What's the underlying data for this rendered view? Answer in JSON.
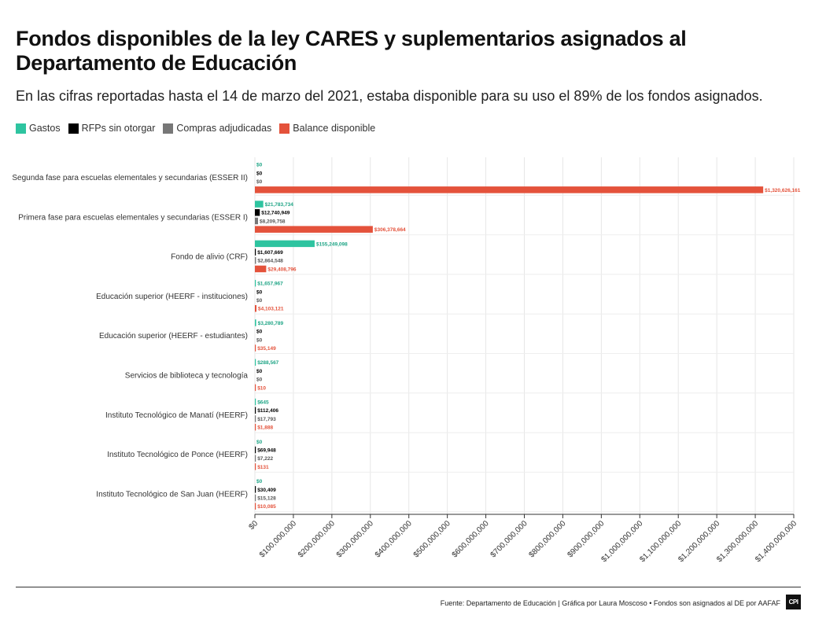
{
  "title": "Fondos disponibles de la ley CARES y suplementarios asignados al Departamento de Educación",
  "subtitle": "En las cifras reportadas hasta el 14 de marzo del 2021, estaba disponible para su uso el 89% de los fondos asignados.",
  "footer": "Fuente: Departamento de Educación | Gráfica por Laura Moscoso • Fondos son asignados al DE por AAFAF",
  "logo_text": "CPI",
  "chart_data": {
    "type": "bar",
    "orientation": "horizontal",
    "categories": [
      "Segunda fase  para escuelas elementales y secundarias (ESSER II)",
      "Primera fase para escuelas elementales y secundarias (ESSER I)",
      "Fondo de alivio (CRF)",
      "Educación superior (HEERF - instituciones)",
      "Educación superior (HEERF - estudiantes)",
      "Servicios de biblioteca y tecnología",
      "Instituto Tecnológico de Manatí (HEERF)",
      "Instituto Tecnológico de Ponce (HEERF)",
      "Instituto Tecnológico de San Juan (HEERF)"
    ],
    "series": [
      {
        "name": "Gastos",
        "color": "#2ec4a0",
        "values": [
          0,
          21783734,
          155249098,
          1657967,
          3280789,
          288567,
          645,
          0,
          0
        ],
        "labels": [
          "$0",
          "$21,783,734",
          "$155,249,098",
          "$1,657,967",
          "$3,280,789",
          "$288,567",
          "$645",
          "$0",
          "$0"
        ]
      },
      {
        "name": "RFPs sin otorgar",
        "color": "#000000",
        "values": [
          0,
          12740949,
          1607669,
          0,
          0,
          0,
          112406,
          69948,
          30409
        ],
        "labels": [
          "$0",
          "$12,740,949",
          "$1,607,669",
          "$0",
          "$0",
          "$0",
          "$112,406",
          "$69,948",
          "$30,409"
        ]
      },
      {
        "name": "Compras adjudicadas",
        "color": "#777777",
        "values": [
          0,
          8209758,
          2864548,
          0,
          0,
          0,
          17793,
          7222,
          15128
        ],
        "labels": [
          "$0",
          "$8,209,758",
          "$2,864,548",
          "$0",
          "$0",
          "$0",
          "$17,793",
          "$7,222",
          "$15,128"
        ]
      },
      {
        "name": "Balance disponible",
        "color": "#e4523b",
        "values": [
          1320626161,
          306378664,
          29408796,
          4103121,
          35149,
          10,
          1888,
          131,
          10085
        ],
        "labels": [
          "$1,320,626,161",
          "$306,378,664",
          "$29,408,796",
          "$4,103,121",
          "$35,149",
          "$10",
          "$1,888",
          "$131",
          "$10,085"
        ]
      }
    ],
    "xlim": [
      0,
      1400000000
    ],
    "xticks": [
      0,
      100000000,
      200000000,
      300000000,
      400000000,
      500000000,
      600000000,
      700000000,
      800000000,
      900000000,
      1000000000,
      1100000000,
      1200000000,
      1300000000,
      1400000000
    ],
    "xtick_labels": [
      "$0",
      "$100,000,000",
      "$200,000,000",
      "$300,000,000",
      "$400,000,000",
      "$500,000,000",
      "$600,000,000",
      "$700,000,000",
      "$800,000,000",
      "$900,000,000",
      "$1,000,000,000",
      "$1,100,000,000",
      "$1,200,000,000",
      "$1,300,000,000",
      "$1,400,000,000"
    ],
    "grid": true,
    "legend": "top-left"
  }
}
